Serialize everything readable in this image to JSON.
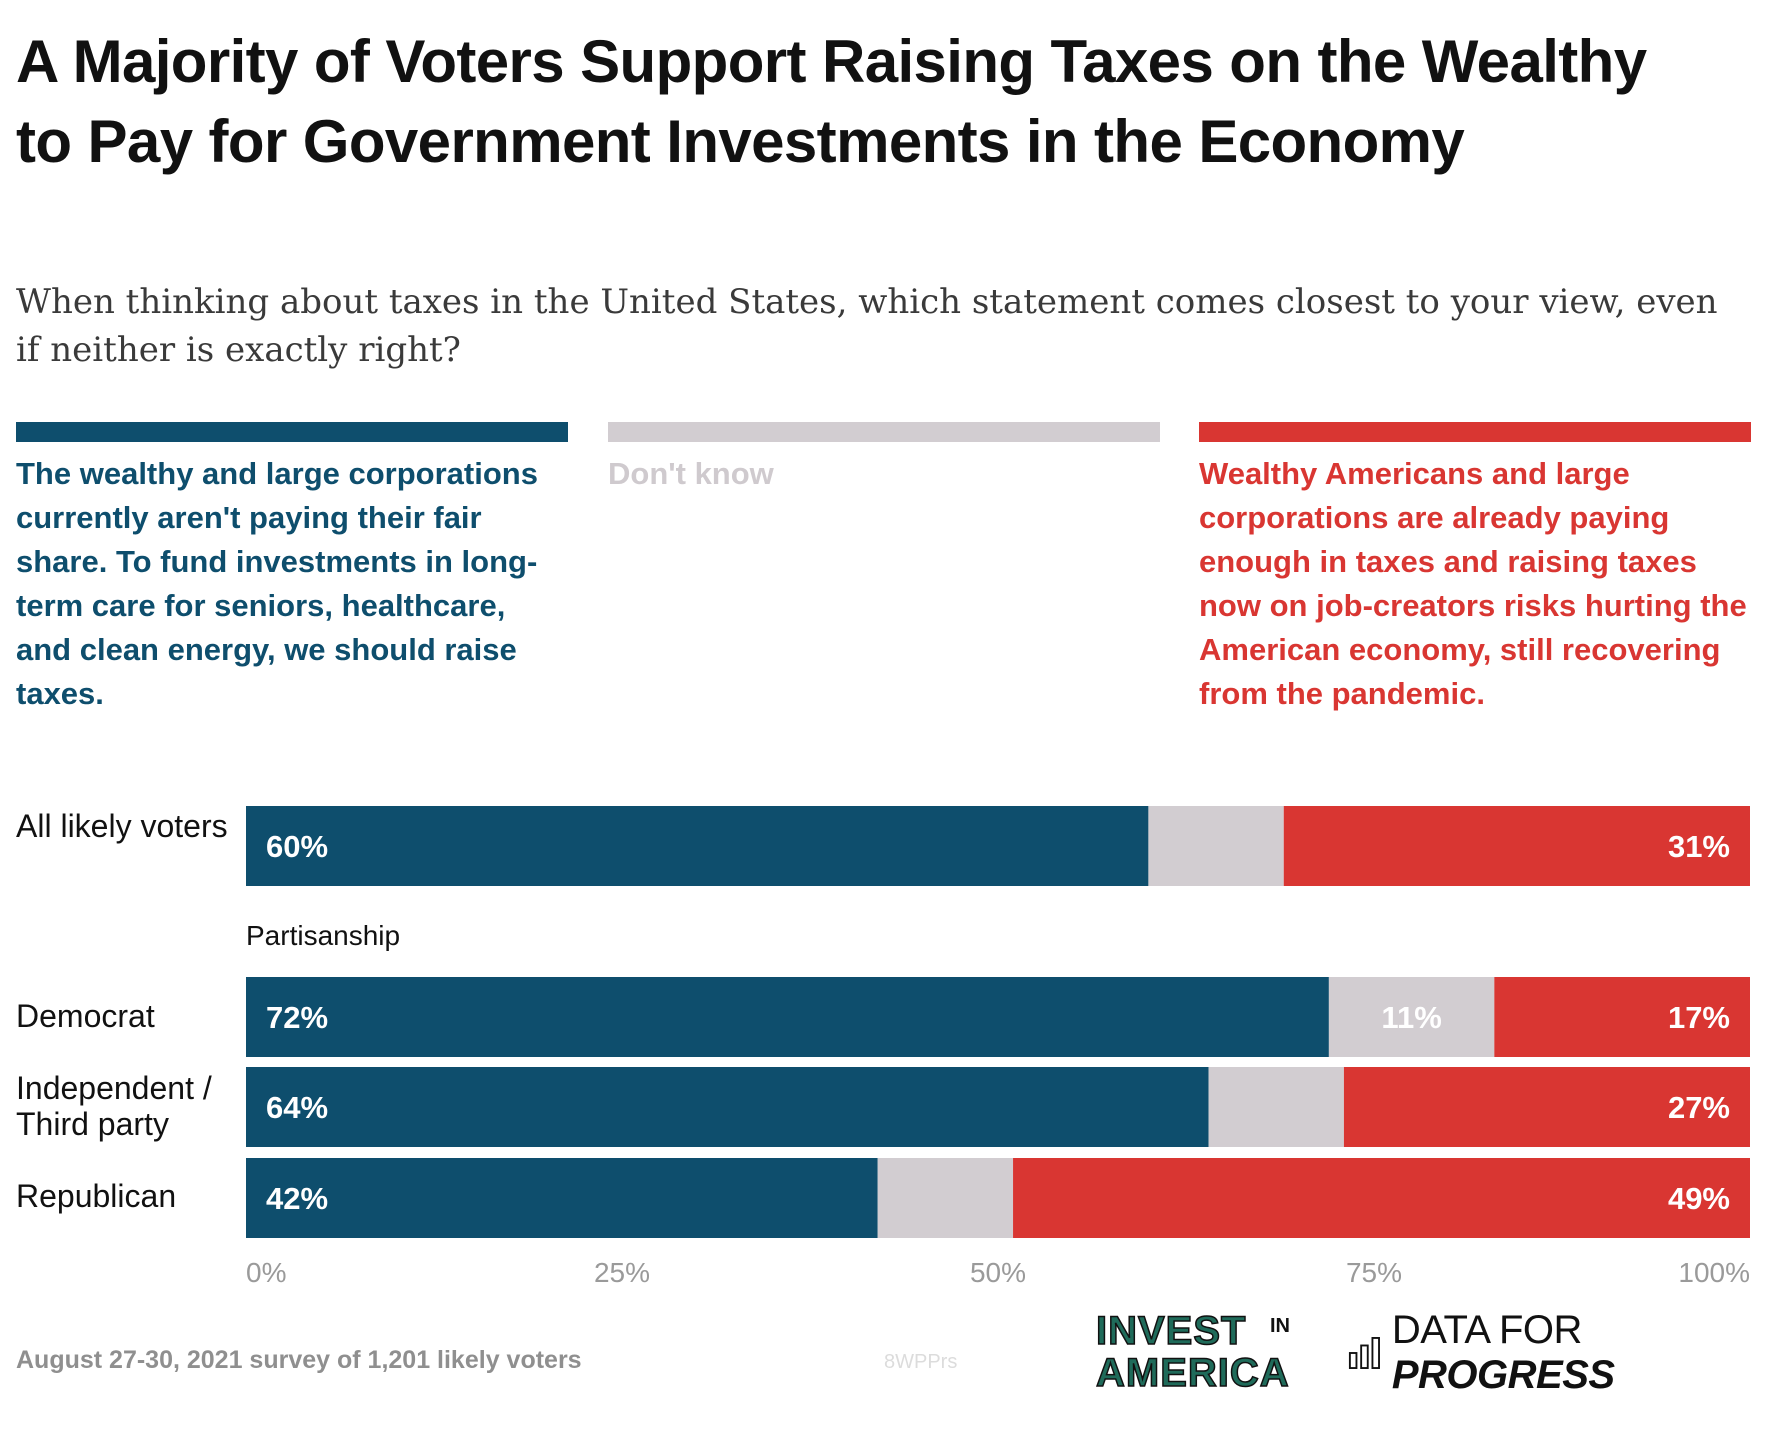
{
  "title": "A Majority of Voters Support Raising Taxes on the Wealthy to Pay for Government Investments in the Economy",
  "subtitle": "When thinking about taxes in the United States, which statement comes closest to your view, even if neither is exactly right?",
  "legend": {
    "support": "The wealthy and large corporations currently aren't paying their fair share. To fund investments in long-term care for seniors, healthcare, and clean energy, we should raise taxes.",
    "dont_know": "Don't know",
    "oppose": "Wealthy Americans and large corporations are already paying enough in taxes and raising taxes now on job-creators risks hurting the American economy, still recovering from the pandemic."
  },
  "colors": {
    "support": "#0e4e6d",
    "dont_know": "#d2cdd1",
    "oppose": "#d93632",
    "axis_text": "#9a9a9a"
  },
  "chart_data": {
    "type": "bar",
    "orientation": "horizontal",
    "stacked": true,
    "group_label": "Partisanship",
    "categories": [
      "All likely voters",
      "Democrat",
      "Independent / Third party",
      "Republican"
    ],
    "series": [
      {
        "name": "The wealthy and large corporations currently aren't paying their fair share",
        "key": "support",
        "values": [
          60,
          72,
          64,
          42
        ],
        "labels": [
          "60%",
          "72%",
          "64%",
          "42%"
        ]
      },
      {
        "name": "Don't know",
        "key": "dont_know",
        "values": [
          9,
          11,
          9,
          9
        ],
        "labels": [
          "",
          "11%",
          "",
          ""
        ]
      },
      {
        "name": "Wealthy Americans and large corporations are already paying enough",
        "key": "oppose",
        "values": [
          31,
          17,
          27,
          49
        ],
        "labels": [
          "31%",
          "17%",
          "27%",
          "49%"
        ]
      }
    ],
    "xlim": [
      0,
      100
    ],
    "x_ticks": [
      0,
      25,
      50,
      75,
      100
    ],
    "x_tick_labels": [
      "0%",
      "25%",
      "50%",
      "75%",
      "100%"
    ],
    "xlabel": "",
    "ylabel": ""
  },
  "footer": {
    "note": "August 27-30, 2021 survey of 1,201 likely voters",
    "chart_id": "8WPPrs",
    "logo_invest_top": "INVEST",
    "logo_invest_in": "IN",
    "logo_invest_bottom": "AMERICA",
    "logo_dfp_regular": "DATA FOR ",
    "logo_dfp_bold": "PROGRESS"
  }
}
